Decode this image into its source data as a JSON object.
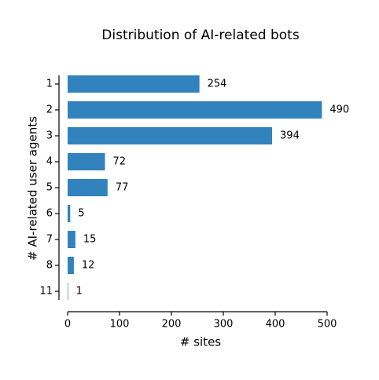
{
  "chart_data": {
    "type": "hbar",
    "title": "Distribution of AI-related bots",
    "x_label": "# sites",
    "y_label": "# AI-related user agents",
    "categories": [
      "1",
      "2",
      "3",
      "4",
      "5",
      "6",
      "7",
      "8",
      "11"
    ],
    "values": [
      254,
      490,
      394,
      72,
      77,
      5,
      15,
      12,
      1
    ],
    "color": "#3182bd",
    "xlim": [
      0,
      500
    ],
    "xticks": [
      0,
      100,
      200,
      300,
      400,
      500
    ]
  }
}
